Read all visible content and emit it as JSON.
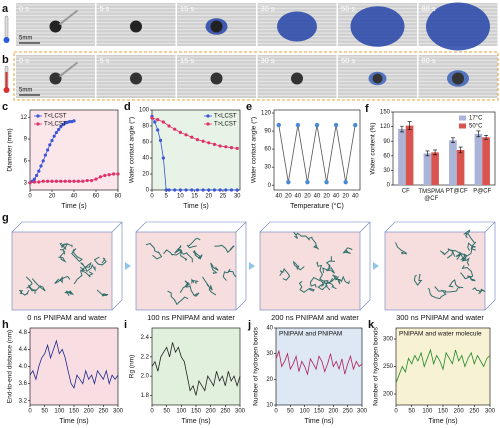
{
  "panels": {
    "a": {
      "label": "a",
      "times": [
        "0 s",
        "5 s",
        "15 s",
        "30 s",
        "50 s",
        "80 s"
      ],
      "scale_bar": "5mm"
    },
    "b": {
      "label": "b",
      "times": [
        "0 s",
        "5 s",
        "15 s",
        "30 s",
        "50 s",
        "80 s"
      ],
      "scale_bar": "5mm"
    }
  },
  "chart_data": [
    {
      "type": "line",
      "label": "c",
      "x_label": "Time (s)",
      "y_label": "Diameter (mm)",
      "background": "#fbe6ea",
      "xlim": [
        0,
        80
      ],
      "xticks": [
        0,
        20,
        40,
        60,
        80
      ],
      "ylim": [
        2,
        13
      ],
      "yticks": [
        3,
        6,
        9,
        12
      ],
      "legend": "upper left",
      "series": [
        {
          "name": "T<LCST",
          "color": "#3a55d6",
          "marker": true,
          "x": [
            0,
            2,
            4,
            6,
            8,
            10,
            12,
            14,
            16,
            18,
            20,
            22,
            24,
            26,
            28,
            30,
            32,
            34,
            36,
            38,
            40
          ],
          "values": [
            3,
            3.2,
            3.5,
            4,
            4.6,
            5.3,
            6,
            6.8,
            7.5,
            8.2,
            8.8,
            9.4,
            9.9,
            10.3,
            10.7,
            11,
            11.2,
            11.3,
            11.4,
            11.4,
            11.5
          ]
        },
        {
          "name": "T>LCST",
          "color": "#e0306a",
          "marker": true,
          "x": [
            0,
            4,
            8,
            12,
            16,
            20,
            24,
            28,
            32,
            36,
            40,
            44,
            48,
            52,
            56,
            60,
            64,
            68,
            72,
            76,
            80
          ],
          "values": [
            3,
            3.1,
            3.1,
            3.2,
            3.2,
            3.2,
            3.2,
            3.2,
            3.2,
            3.2,
            3.2,
            3.2,
            3.2,
            3.3,
            3.3,
            3.5,
            3.8,
            4,
            4.1,
            4.2,
            4.2
          ]
        }
      ]
    },
    {
      "type": "line",
      "label": "d",
      "x_label": "Time (s)",
      "y_label": "Water contact angle (°)",
      "background": "#e6f3e6",
      "xlim": [
        0,
        31
      ],
      "xticks": [
        0,
        5,
        10,
        15,
        20,
        25,
        30
      ],
      "ylim": [
        0,
        100
      ],
      "yticks": [
        0,
        20,
        40,
        60,
        80,
        100
      ],
      "legend": "upper right",
      "series": [
        {
          "name": "T<LCST",
          "color": "#3a55d6",
          "marker": true,
          "x": [
            0,
            1,
            2,
            3,
            4,
            5,
            6,
            8,
            10,
            12,
            14,
            16,
            18,
            20,
            22,
            24,
            26,
            28,
            30
          ],
          "values": [
            92,
            85,
            75,
            62,
            40,
            0,
            0,
            0,
            0,
            0,
            0,
            0,
            0,
            0,
            0,
            0,
            0,
            0,
            0
          ]
        },
        {
          "name": "T>LCST",
          "color": "#e0306a",
          "marker": true,
          "x": [
            0,
            2,
            4,
            6,
            8,
            10,
            12,
            14,
            16,
            18,
            20,
            22,
            24,
            26,
            28,
            30
          ],
          "values": [
            90,
            88,
            85,
            80,
            76,
            72,
            69,
            66,
            63,
            61,
            59,
            57,
            55,
            54,
            53,
            52
          ]
        }
      ]
    },
    {
      "type": "category_line",
      "label": "e",
      "x_label": "Temperature (°C)",
      "y_label": "Water contact angle (°)",
      "background": "#ffffff",
      "categories": [
        "40",
        "20",
        "40",
        "20",
        "40",
        "20",
        "40",
        "20",
        "40"
      ],
      "ylim": [
        -8,
        125
      ],
      "yticks": [
        0,
        30,
        60,
        90,
        120
      ],
      "series": [
        {
          "name": "cycle",
          "color": "#555555",
          "marker_color": "#4a8ad4",
          "values": [
            100,
            5,
            100,
            5,
            100,
            5,
            100,
            5,
            100
          ]
        }
      ]
    },
    {
      "type": "bar",
      "label": "f",
      "y_label": "Water content (%)",
      "background": "#ffffff",
      "categories": [
        "CF",
        "TMSPMA @CF",
        "PT@CF",
        "P@CF"
      ],
      "ylim": [
        0,
        150
      ],
      "yticks": [
        0,
        30,
        60,
        90,
        120,
        150
      ],
      "legend": "upper right",
      "series": [
        {
          "name": "17°C",
          "color": "#aab3d8",
          "values": [
            115,
            65,
            92,
            105
          ],
          "errors": [
            6,
            5,
            5,
            6
          ]
        },
        {
          "name": "50°C",
          "color": "#d9534f",
          "values": [
            122,
            67,
            72,
            98
          ],
          "errors": [
            8,
            5,
            6,
            4
          ]
        }
      ]
    },
    {
      "type": "line",
      "label": "h",
      "x_label": "Time (ns)",
      "y_label": "End-to-end distance (nm)",
      "background": "#f8dde2",
      "xlim": [
        0,
        300
      ],
      "xticks": [
        0,
        50,
        100,
        150,
        200,
        250,
        300
      ],
      "ylim": [
        3.1,
        4.9
      ],
      "yticks": [
        3.2,
        3.6,
        {
          "value": 4,
          "label": "4.0"
        },
        4.4,
        4.8
      ],
      "series": [
        {
          "name": "h",
          "color": "#1e2a8c",
          "x": [
            0,
            10,
            20,
            30,
            40,
            50,
            60,
            70,
            80,
            90,
            100,
            110,
            120,
            130,
            140,
            150,
            160,
            170,
            180,
            190,
            200,
            210,
            220,
            230,
            240,
            250,
            260,
            270,
            280,
            290,
            300
          ],
          "values": [
            3.8,
            3.9,
            3.7,
            4.0,
            4.2,
            4.3,
            4.5,
            4.2,
            4.4,
            4.6,
            4.3,
            4.4,
            4.2,
            3.9,
            3.6,
            3.5,
            3.8,
            3.7,
            3.6,
            3.9,
            3.7,
            3.8,
            3.6,
            3.9,
            3.8,
            3.7,
            3.9,
            3.6,
            3.8,
            3.7,
            3.8
          ]
        }
      ]
    },
    {
      "type": "line",
      "label": "i",
      "x_label": "Time (ns)",
      "y_label": "Rg (nm)",
      "background": "#e0f0dc",
      "xlim": [
        0,
        300
      ],
      "xticks": [
        0,
        50,
        100,
        150,
        200,
        250,
        300
      ],
      "ylim": [
        1.7,
        2.5
      ],
      "yticks": [
        1.8,
        {
          "value": 2,
          "label": "2.0"
        },
        2.2,
        2.4
      ],
      "series": [
        {
          "name": "i",
          "color": "#222222",
          "x": [
            0,
            10,
            20,
            30,
            40,
            50,
            60,
            70,
            80,
            90,
            100,
            110,
            120,
            130,
            140,
            150,
            160,
            170,
            180,
            190,
            200,
            210,
            220,
            230,
            240,
            250,
            260,
            270,
            280,
            290,
            300
          ],
          "values": [
            2.1,
            2.15,
            2.05,
            2.2,
            2.25,
            2.3,
            2.2,
            2.35,
            2.25,
            2.3,
            2.2,
            2.15,
            2.0,
            1.85,
            1.9,
            1.8,
            1.95,
            1.9,
            1.85,
            2.0,
            1.95,
            1.9,
            2.05,
            1.95,
            2.0,
            1.9,
            2.05,
            1.95,
            2.0,
            1.9,
            2.0
          ]
        }
      ]
    },
    {
      "type": "line",
      "label": "j",
      "x_label": "Time (ns)",
      "y_label": "Number of hydrogen bonds",
      "annotation": "PNIPAM and PNIPAM",
      "background": "#dde8f4",
      "xlim": [
        0,
        300
      ],
      "xticks": [
        0,
        50,
        100,
        150,
        200,
        250,
        300
      ],
      "ylim": [
        10,
        40
      ],
      "yticks": [
        10,
        20,
        30,
        40
      ],
      "series": [
        {
          "name": "j",
          "color": "#b0205a",
          "x": [
            0,
            10,
            20,
            30,
            40,
            50,
            60,
            70,
            80,
            90,
            100,
            110,
            120,
            130,
            140,
            150,
            160,
            170,
            180,
            190,
            200,
            210,
            220,
            230,
            240,
            250,
            260,
            270,
            280,
            290,
            300
          ],
          "values": [
            28,
            31,
            25,
            27,
            30,
            24,
            26,
            29,
            23,
            27,
            25,
            22,
            28,
            26,
            24,
            29,
            27,
            23,
            26,
            30,
            25,
            27,
            24,
            28,
            22,
            26,
            29,
            24,
            27,
            25,
            26
          ]
        }
      ]
    },
    {
      "type": "line",
      "label": "k",
      "x_label": "Time (ns)",
      "y_label": "Number of hydrogen bonds",
      "annotation": "PNIPAM and water molecule",
      "background": "#f8f2d4",
      "xlim": [
        0,
        300
      ],
      "xticks": [
        0,
        50,
        100,
        150,
        200,
        250,
        300
      ],
      "ylim": [
        180,
        320
      ],
      "yticks": [
        200,
        250,
        300
      ],
      "series": [
        {
          "name": "k",
          "color": "#1f8a2a",
          "x": [
            0,
            10,
            20,
            30,
            40,
            50,
            60,
            70,
            80,
            90,
            100,
            110,
            120,
            130,
            140,
            150,
            160,
            170,
            180,
            190,
            200,
            210,
            220,
            230,
            240,
            250,
            260,
            270,
            280,
            290,
            300
          ],
          "values": [
            220,
            235,
            250,
            240,
            265,
            255,
            270,
            260,
            275,
            250,
            265,
            280,
            255,
            270,
            260,
            245,
            275,
            265,
            255,
            280,
            260,
            270,
            250,
            265,
            275,
            255,
            270,
            260,
            250,
            265,
            270
          ]
        }
      ]
    }
  ],
  "simulation": {
    "label": "g",
    "captions": [
      "0 ns PNIPAM and water",
      "100 ns PNIPAM and water",
      "200 ns PNIPAM and water",
      "300 ns PNIPAM and water"
    ]
  }
}
